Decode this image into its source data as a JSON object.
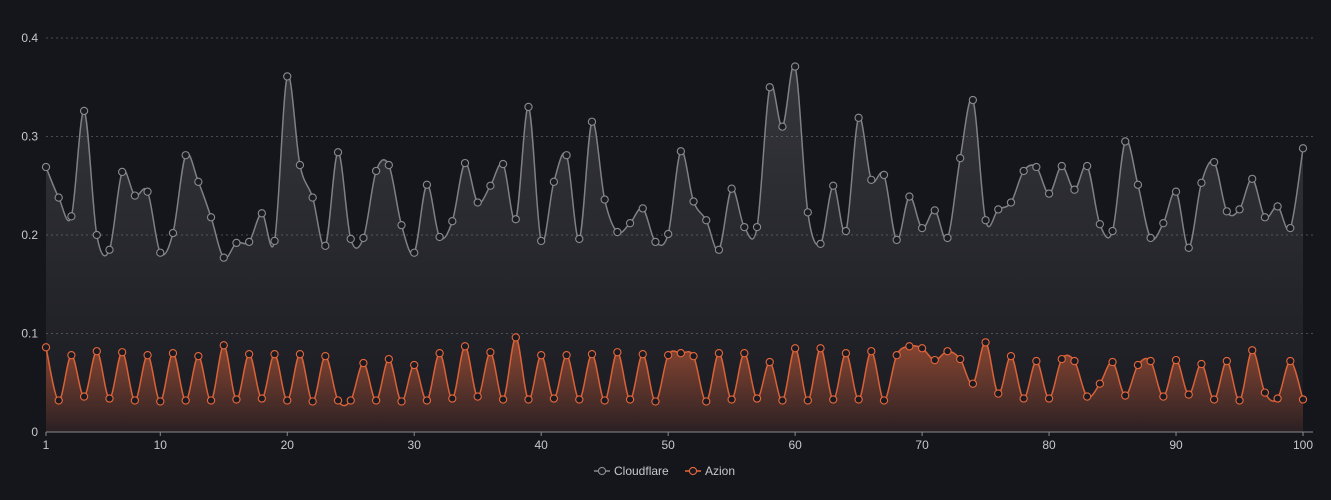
{
  "chart_data": {
    "type": "area",
    "title": "",
    "xlabel": "",
    "ylabel": "",
    "xlim": [
      1,
      100
    ],
    "ylim": [
      0,
      0.4
    ],
    "x_ticks": [
      1,
      10,
      20,
      30,
      40,
      50,
      60,
      70,
      80,
      90,
      100
    ],
    "y_ticks": [
      0,
      0.1,
      0.2,
      0.3,
      0.4
    ],
    "x_tick_labels": [
      "1",
      "10",
      "20",
      "30",
      "40",
      "50",
      "60",
      "70",
      "80",
      "90",
      "100"
    ],
    "y_tick_labels": [
      "0",
      "0.1",
      "0.2",
      "0.3",
      "0.4"
    ],
    "grid": "horizontal-dotted",
    "legend_position": "bottom-center",
    "x": [
      1,
      2,
      3,
      4,
      5,
      6,
      7,
      8,
      9,
      10,
      11,
      12,
      13,
      14,
      15,
      16,
      17,
      18,
      19,
      20,
      21,
      22,
      23,
      24,
      25,
      26,
      27,
      28,
      29,
      30,
      31,
      32,
      33,
      34,
      35,
      36,
      37,
      38,
      39,
      40,
      41,
      42,
      43,
      44,
      45,
      46,
      47,
      48,
      49,
      50,
      51,
      52,
      53,
      54,
      55,
      56,
      57,
      58,
      59,
      60,
      61,
      62,
      63,
      64,
      65,
      66,
      67,
      68,
      69,
      70,
      71,
      72,
      73,
      74,
      75,
      76,
      77,
      78,
      79,
      80,
      81,
      82,
      83,
      84,
      85,
      86,
      87,
      88,
      89,
      90,
      91,
      92,
      93,
      94,
      95,
      96,
      97,
      98,
      99,
      100
    ],
    "series": [
      {
        "name": "Cloudflare",
        "color": "#8a8a90",
        "values": [
          0.269,
          0.238,
          0.219,
          0.326,
          0.2,
          0.185,
          0.264,
          0.24,
          0.244,
          0.182,
          0.202,
          0.281,
          0.254,
          0.218,
          0.177,
          0.192,
          0.193,
          0.222,
          0.194,
          0.361,
          0.271,
          0.238,
          0.189,
          0.284,
          0.196,
          0.197,
          0.265,
          0.271,
          0.21,
          0.182,
          0.251,
          0.198,
          0.214,
          0.273,
          0.233,
          0.25,
          0.272,
          0.216,
          0.33,
          0.194,
          0.254,
          0.281,
          0.196,
          0.315,
          0.236,
          0.203,
          0.212,
          0.227,
          0.193,
          0.201,
          0.285,
          0.234,
          0.215,
          0.185,
          0.247,
          0.208,
          0.208,
          0.35,
          0.31,
          0.371,
          0.223,
          0.191,
          0.25,
          0.204,
          0.319,
          0.256,
          0.261,
          0.195,
          0.239,
          0.207,
          0.225,
          0.197,
          0.278,
          0.337,
          0.215,
          0.226,
          0.233,
          0.265,
          0.269,
          0.242,
          0.27,
          0.246,
          0.27,
          0.211,
          0.204,
          0.295,
          0.251,
          0.197,
          0.212,
          0.244,
          0.187,
          0.253,
          0.274,
          0.224,
          0.226,
          0.257,
          0.218,
          0.229,
          0.207,
          0.288
        ]
      },
      {
        "name": "Azion",
        "color": "#e8673a",
        "values": [
          0.086,
          0.032,
          0.078,
          0.036,
          0.082,
          0.034,
          0.081,
          0.032,
          0.078,
          0.031,
          0.08,
          0.032,
          0.077,
          0.032,
          0.088,
          0.033,
          0.079,
          0.034,
          0.079,
          0.032,
          0.079,
          0.031,
          0.077,
          0.032,
          0.032,
          0.07,
          0.032,
          0.074,
          0.031,
          0.068,
          0.032,
          0.08,
          0.034,
          0.087,
          0.036,
          0.081,
          0.033,
          0.096,
          0.033,
          0.078,
          0.034,
          0.078,
          0.033,
          0.079,
          0.032,
          0.081,
          0.033,
          0.079,
          0.031,
          0.078,
          0.08,
          0.077,
          0.031,
          0.08,
          0.033,
          0.08,
          0.034,
          0.071,
          0.032,
          0.085,
          0.032,
          0.085,
          0.033,
          0.08,
          0.033,
          0.082,
          0.032,
          0.078,
          0.087,
          0.085,
          0.073,
          0.082,
          0.074,
          0.049,
          0.091,
          0.039,
          0.077,
          0.034,
          0.072,
          0.034,
          0.074,
          0.072,
          0.036,
          0.049,
          0.071,
          0.037,
          0.068,
          0.072,
          0.036,
          0.073,
          0.038,
          0.069,
          0.033,
          0.072,
          0.032,
          0.083,
          0.04,
          0.034,
          0.072,
          0.033
        ]
      }
    ]
  }
}
